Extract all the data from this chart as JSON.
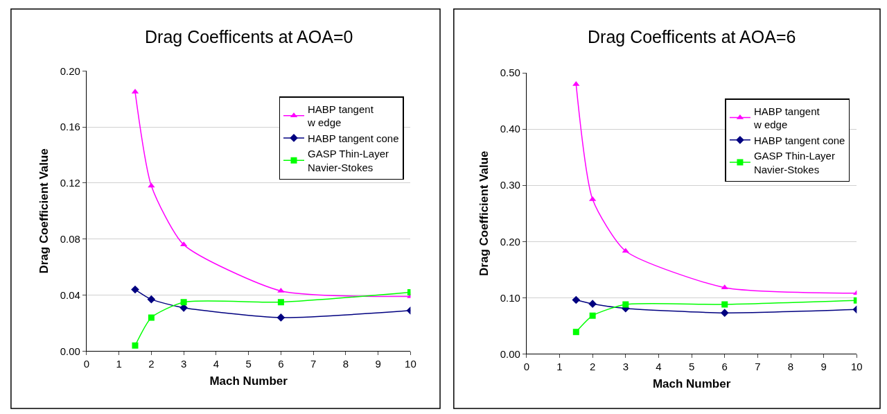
{
  "chart_data": [
    {
      "type": "line",
      "title": "Drag Coefficents at AOA=0",
      "xlabel": "Mach Number",
      "ylabel": "Drag Coefficient Value",
      "x": [
        1.5,
        2,
        3,
        6,
        10
      ],
      "xlim": [
        0,
        10
      ],
      "xticks": [
        0,
        1,
        2,
        3,
        4,
        5,
        6,
        7,
        8,
        9,
        10
      ],
      "ylim": [
        0,
        0.2
      ],
      "yticks": [
        {
          "value": 0,
          "label": "0.00"
        },
        {
          "value": 0.04,
          "label": "0.04"
        },
        {
          "value": 0.08,
          "label": "0.08"
        },
        {
          "value": 0.12,
          "label": "0.12"
        },
        {
          "value": 0.16,
          "label": "0.16"
        },
        {
          "value": 0.2,
          "label": "0.20"
        }
      ],
      "grid": "y",
      "legend": "top right",
      "series": [
        {
          "name": "HABP tangent\nw edge",
          "color": "#ff00ff",
          "marker": "triangle",
          "values": [
            0.185,
            0.118,
            0.076,
            0.043,
            0.039
          ]
        },
        {
          "name": "HABP tangent cone",
          "color": "#000080",
          "marker": "diamond",
          "values": [
            0.044,
            0.037,
            0.031,
            0.024,
            0.029
          ]
        },
        {
          "name": "GASP Thin-Layer\nNavier-Stokes",
          "color": "#00ff00",
          "marker": "square",
          "values": [
            0.004,
            0.024,
            0.035,
            0.035,
            0.042
          ]
        }
      ]
    },
    {
      "type": "line",
      "title": "Drag Coefficents at AOA=6",
      "xlabel": "Mach Number",
      "ylabel": "Drag Coefficient Value",
      "x": [
        1.5,
        2,
        3,
        6,
        10
      ],
      "xlim": [
        0,
        10
      ],
      "xticks": [
        0,
        1,
        2,
        3,
        4,
        5,
        6,
        7,
        8,
        9,
        10
      ],
      "ylim": [
        0,
        0.5
      ],
      "yticks": [
        {
          "value": 0,
          "label": "0.00"
        },
        {
          "value": 0.1,
          "label": "0.10"
        },
        {
          "value": 0.2,
          "label": "0.20"
        },
        {
          "value": 0.3,
          "label": "0.30"
        },
        {
          "value": 0.4,
          "label": "0.40"
        },
        {
          "value": 0.5,
          "label": "0.50"
        }
      ],
      "grid": "y",
      "legend": "top right",
      "series": [
        {
          "name": "HABP tangent\nw edge",
          "color": "#ff00ff",
          "marker": "triangle",
          "values": [
            0.48,
            0.275,
            0.183,
            0.118,
            0.108
          ]
        },
        {
          "name": "HABP tangent cone",
          "color": "#000080",
          "marker": "diamond",
          "values": [
            0.096,
            0.089,
            0.081,
            0.073,
            0.079
          ]
        },
        {
          "name": "GASP Thin-Layer\nNavier-Stokes",
          "color": "#00ff00",
          "marker": "square",
          "values": [
            0.039,
            0.068,
            0.088,
            0.088,
            0.095
          ]
        }
      ]
    }
  ]
}
